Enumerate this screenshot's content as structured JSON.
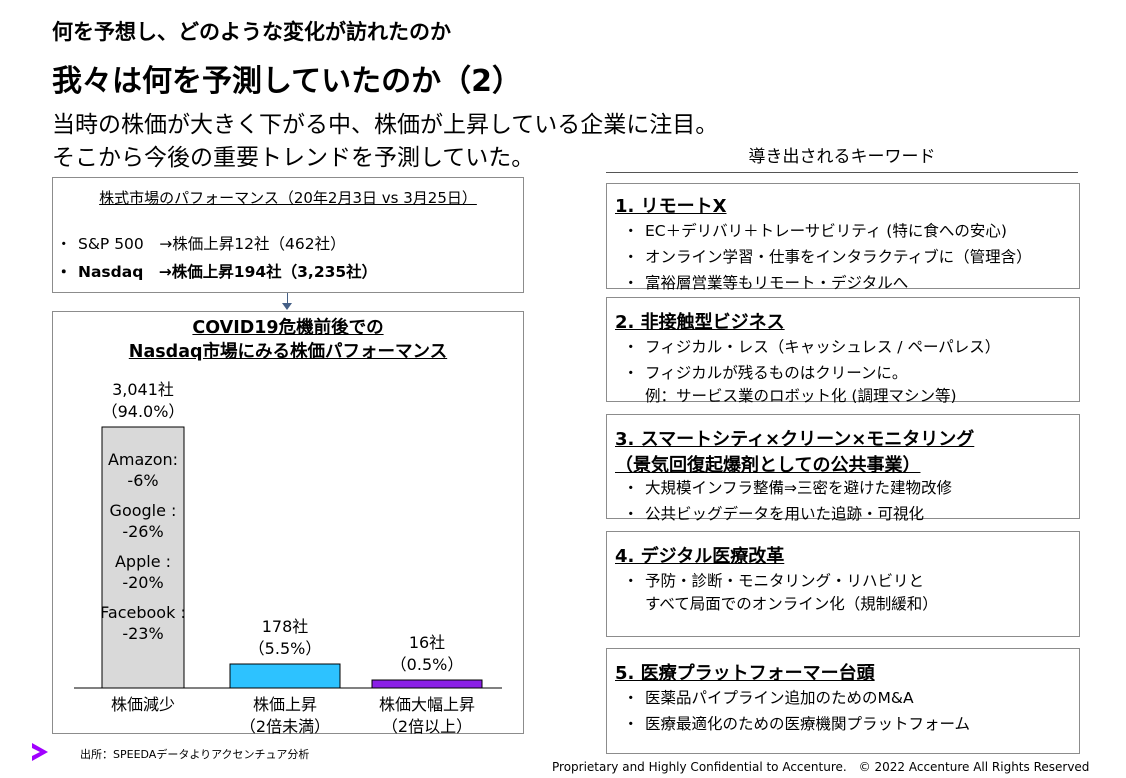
{
  "header": {
    "subtitle": "何を予想し、どのような変化が訪れたのか",
    "title": "我々は何を予測していたのか（2）",
    "lead_1": "当時の株価が大きく下がる中、株価が上昇している企業に注目。",
    "lead_2": "そこから今後の重要トレンドを予測していた。"
  },
  "market_box": {
    "title": "株式市場のパフォーマンス（20年2月3日 vs 3月25日）",
    "items": [
      "S&P 500　→株価上昇12社（462社）",
      "Nasdaq　→株価上昇194社（3,235社）"
    ],
    "bullet": "・"
  },
  "chart_data": {
    "type": "bar",
    "title_line1": "COVID19危機前後での",
    "title_line2": "Nasdaq市場にみる株価パフォーマンス",
    "categories": [
      {
        "line1": "株価減少",
        "line2": ""
      },
      {
        "line1": "株価上昇",
        "line2": "（2倍未満）"
      },
      {
        "line1": "株価大幅上昇",
        "line2": "（2倍以上）"
      }
    ],
    "values": [
      3041,
      178,
      16
    ],
    "percents": [
      94.0,
      5.5,
      0.5
    ],
    "value_labels": [
      {
        "line1": "3,041社",
        "line2": "（94.0%）"
      },
      {
        "line1": "178社",
        "line2": "（5.5%）"
      },
      {
        "line1": "16社",
        "line2": "（0.5%）"
      }
    ],
    "colors": [
      "#d9d9d9",
      "#2dc2ff",
      "#8a1fe6"
    ],
    "in_bar_notes": [
      {
        "name": "Amazon:",
        "value": "-6%"
      },
      {
        "name": "Google :",
        "value": "-26%"
      },
      {
        "name": "Apple :",
        "value": "-20%"
      },
      {
        "name": "Facebook :",
        "value": "-23%"
      }
    ]
  },
  "keywords": {
    "heading": "導き出されるキーワード",
    "groups": [
      {
        "title": "1. リモートX",
        "bullets": [
          [
            "EC＋デリバリ＋トレーサビリティ (特に食への安心)"
          ],
          [
            "オンライン学習・仕事をインタラクティブに（管理含）"
          ],
          [
            "富裕層営業等もリモート・デジタルへ"
          ]
        ]
      },
      {
        "title": "2. 非接触型ビジネス",
        "bullets": [
          [
            "フィジカル・レス（キャッシュレス / ペーパレス）"
          ],
          [
            "フィジカルが残るものはクリーンに。",
            "例：サービス業のロボット化 (調理マシン等)"
          ]
        ]
      },
      {
        "title": "3. スマートシティ×クリーン×モニタリング",
        "title_line2": "（景気回復起爆剤としての公共事業）",
        "bullets": [
          [
            "大規模インフラ整備⇒三密を避けた建物改修"
          ],
          [
            "公共ビッグデータを用いた追跡・可視化"
          ]
        ]
      },
      {
        "title": "4. デジタル医療改革",
        "bullets": [
          [
            "予防・診断・モニタリング・リハビリと",
            "すべて局面でのオンライン化（規制緩和）"
          ]
        ]
      },
      {
        "title": "5. 医療プラットフォーマー台頭",
        "bullets": [
          [
            "医薬品パイプライン追加のためのM&A"
          ],
          [
            "医療最適化のための医療機関プラットフォーム"
          ]
        ]
      }
    ],
    "bullet": "・"
  },
  "footer": {
    "source": "出所：SPEEDAデータよりアクセンチュア分析",
    "copyright": "Proprietary and Highly Confidential to Accenture.　© 2022 Accenture All Rights Reserved"
  },
  "brand": {
    "accent": "#a100ff"
  }
}
